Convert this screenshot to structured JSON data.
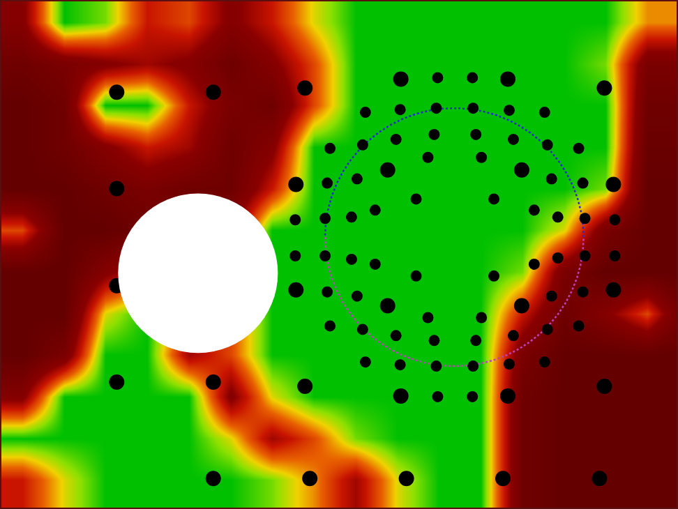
{
  "chart_data": {
    "type": "heatmap",
    "xlim": [
      0,
      972
    ],
    "ylim": [
      730,
      0
    ],
    "tick_labels": false,
    "grid": false,
    "heatmap": {
      "x": [
        30,
        90,
        150,
        210,
        270,
        330,
        390,
        450,
        510,
        570,
        630,
        690,
        750,
        810,
        870,
        930,
        990
      ],
      "y": [
        30,
        90,
        150,
        210,
        270,
        330,
        390,
        450,
        510,
        570,
        630,
        690,
        750
      ],
      "zlim": [
        0,
        1
      ],
      "z": [
        [
          0.3,
          1,
          0.9,
          0.5,
          0.6,
          0.3,
          0.5,
          0.8,
          1,
          1,
          1,
          1,
          1,
          1,
          1,
          0.7,
          0.7
        ],
        [
          0.1,
          0.2,
          0.3,
          0.4,
          0.3,
          0.1,
          0.3,
          0.6,
          1,
          1,
          1,
          1,
          1,
          1,
          0.9,
          0.2,
          0.2
        ],
        [
          0,
          0.1,
          1,
          1,
          0.5,
          0.2,
          0.1,
          0.6,
          1,
          1,
          1,
          1,
          1,
          1,
          1,
          0.1,
          0.1
        ],
        [
          0,
          0.1,
          0.3,
          0.5,
          0.4,
          0.1,
          0.3,
          1,
          1,
          1,
          1,
          1,
          1,
          1,
          1,
          0.05,
          0.05
        ],
        [
          0,
          0,
          0.1,
          0.2,
          0.1,
          0.1,
          0.5,
          1,
          1,
          1,
          1,
          1,
          1,
          1,
          0.9,
          0,
          0
        ],
        [
          0.6,
          0,
          0,
          0.1,
          0.2,
          0.3,
          1,
          1,
          1,
          1,
          1,
          1,
          1,
          0.8,
          0.2,
          0,
          0
        ],
        [
          0,
          0,
          0.3,
          0.5,
          0.5,
          0.5,
          1,
          1,
          1,
          1,
          1,
          1,
          0.9,
          0.2,
          0,
          0,
          0
        ],
        [
          0,
          0,
          0.8,
          1,
          0.6,
          0.6,
          1,
          1,
          1,
          1,
          1,
          1,
          0.5,
          0.1,
          0.3,
          0.6,
          0
        ],
        [
          0,
          0.2,
          1,
          1,
          0.4,
          0.6,
          1,
          1,
          1,
          1,
          1,
          1,
          0.2,
          0,
          0,
          0,
          0
        ],
        [
          0.3,
          1,
          1,
          1,
          1,
          0.3,
          0.8,
          1,
          1,
          1,
          1,
          1,
          0.1,
          0,
          0,
          0,
          0
        ],
        [
          1,
          1,
          1,
          1,
          1,
          0.8,
          0.4,
          0.6,
          0.9,
          1,
          1,
          1,
          0.1,
          0,
          0,
          0,
          0
        ],
        [
          0.5,
          0.8,
          1,
          1,
          1,
          1,
          0.9,
          0.7,
          0.4,
          0.8,
          1,
          1,
          0.1,
          0,
          0,
          0,
          0
        ],
        [
          0.5,
          0.8,
          1,
          1,
          1,
          1,
          0.9,
          0.7,
          0.4,
          0.8,
          1,
          1,
          0.1,
          0,
          0,
          0,
          0
        ]
      ]
    },
    "series": [
      {
        "type": "scatter",
        "marker": "circle",
        "color": "#000000",
        "size": 22,
        "x": [
          166,
          305,
          437,
          575,
          729,
          868,
          166,
          424,
          881,
          166,
          424,
          881,
          166,
          305,
          437,
          575,
          729,
          868,
          305,
          444,
          583,
          722,
          861,
          556,
          749,
          556,
          749
        ],
        "y": [
          131,
          131,
          125,
          112,
          112,
          125,
          270,
          264,
          264,
          410,
          416,
          416,
          549,
          549,
          555,
          569,
          569,
          555,
          688,
          688,
          688,
          688,
          688,
          243,
          243,
          439,
          439
        ]
      },
      {
        "type": "scatter",
        "marker": "circle",
        "color": "#000000",
        "size": 16,
        "x": [
          628,
          678,
          524,
          574,
          626,
          679,
          731,
          782,
          623,
          683,
          568,
          737,
          473,
          520,
          786,
          831,
          614,
          691,
          469,
          512,
          792,
          837,
          597,
          709,
          538,
          767,
          423,
          466,
          504,
          801,
          840,
          883,
          423,
          466,
          504,
          801,
          840,
          883,
          538,
          767,
          597,
          709,
          469,
          512,
          792,
          837,
          614,
          691,
          473,
          520,
          786,
          831,
          568,
          737,
          623,
          683,
          524,
          574,
          626,
          679,
          731,
          782,
          628,
          678
        ],
        "y": [
          110,
          110,
          160,
          156,
          154,
          154,
          157,
          160,
          192,
          192,
          199,
          199,
          212,
          207,
          207,
          212,
          225,
          225,
          262,
          256,
          256,
          262,
          285,
          285,
          301,
          301,
          315,
          313,
          311,
          311,
          313,
          315,
          367,
          367,
          372,
          370,
          367,
          367,
          379,
          379,
          396,
          396,
          419,
          425,
          425,
          419,
          456,
          456,
          468,
          473,
          473,
          468,
          482,
          482,
          489,
          489,
          520,
          524,
          526,
          526,
          523,
          520,
          570,
          570
        ]
      }
    ],
    "disk": {
      "cx": 283,
      "cy": 392,
      "r": 115,
      "color": "#ffffff"
    },
    "ring": {
      "cx": 652,
      "cy": 340,
      "r": 186,
      "colors": [
        "#2a2ad0",
        "#c040c0"
      ],
      "line_style": "dotted"
    }
  }
}
